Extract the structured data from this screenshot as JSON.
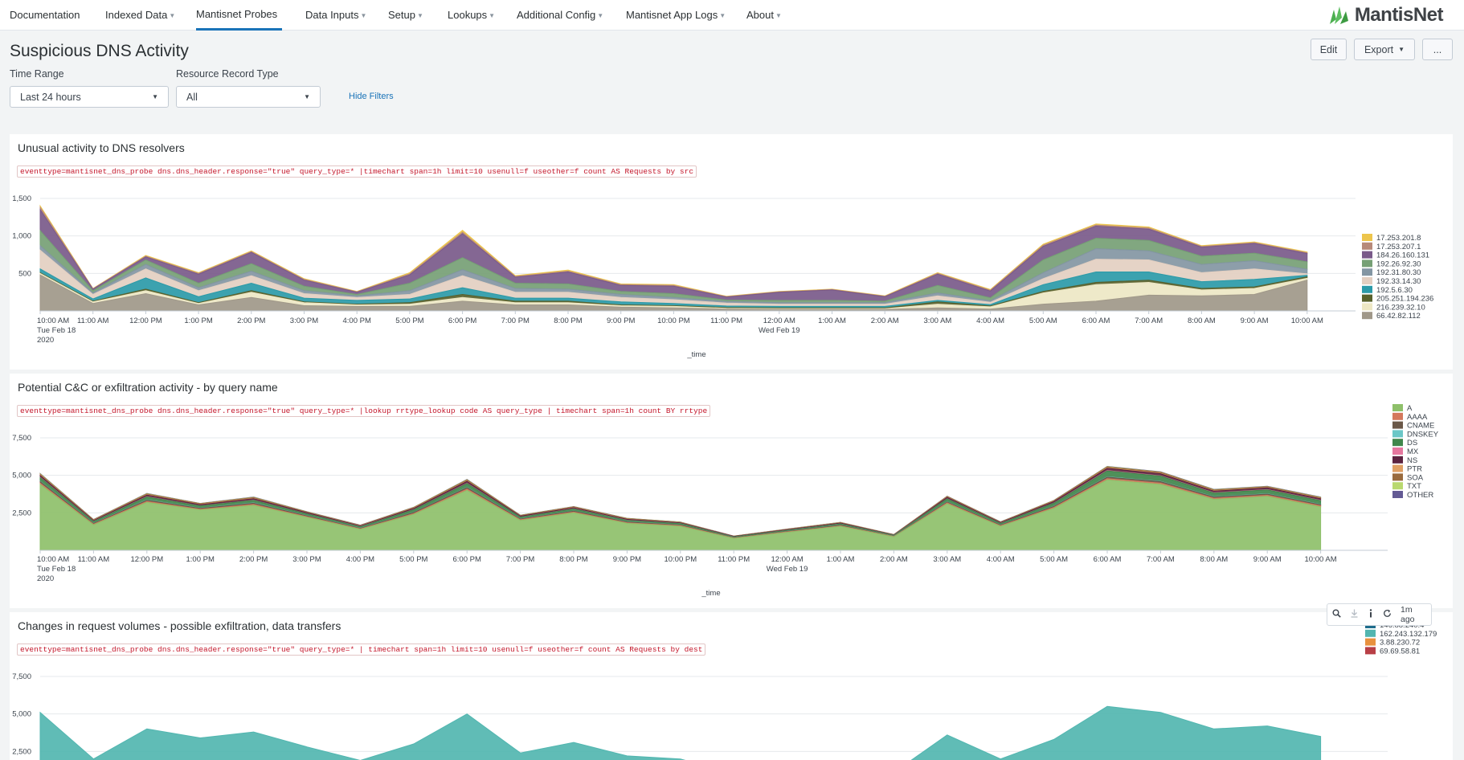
{
  "nav": {
    "items": [
      {
        "label": "Documentation"
      },
      {
        "label": "Indexed Data"
      },
      {
        "label": "Mantisnet Probes"
      },
      {
        "label": "Data Inputs"
      },
      {
        "label": "Setup"
      },
      {
        "label": "Lookups"
      },
      {
        "label": "Additional Config"
      },
      {
        "label": "Mantisnet App Logs"
      },
      {
        "label": "About"
      }
    ],
    "logo_text": "MantisNet",
    "logo_color": "#4caf50"
  },
  "page": {
    "title": "Suspicious DNS Activity",
    "edit_label": "Edit",
    "export_label": "Export",
    "more_label": "..."
  },
  "filters": {
    "time_range": {
      "label": "Time Range",
      "value": "Last 24 hours"
    },
    "record_type": {
      "label": "Resource Record Type",
      "value": "All"
    },
    "hide_label": "Hide Filters"
  },
  "panels": [
    {
      "title": "Unusual activity to DNS resolvers",
      "query": "eventtype=mantisnet_dns_probe dns.dns_header.response=\"true\" query_type=* |timechart span=1h limit=10 usenull=f useother=f count AS Requests by src"
    },
    {
      "title": "Potential C&C or exfiltration activity - by query name",
      "query": "eventtype=mantisnet_dns_probe dns.dns_header.response=\"true\" query_type=* |lookup rrtype_lookup code AS query_type | timechart span=1h count BY rrtype"
    },
    {
      "title": "Changes in request volumes - possible exfiltration, data transfers",
      "query": "eventtype=mantisnet_dns_probe dns.dns_header.response=\"true\" query_type=* | timechart span=1h limit=10 usenull=f useother=f count AS Requests by dest"
    }
  ],
  "panel_tools": {
    "icons": [
      "search-icon",
      "download-icon",
      "info-icon",
      "refresh-icon"
    ],
    "age_label": "1m ago"
  },
  "chart_data": [
    {
      "type": "area",
      "stacked": true,
      "x": [
        "10:00 AM",
        "11:00 AM",
        "12:00 PM",
        "1:00 PM",
        "2:00 PM",
        "3:00 PM",
        "4:00 PM",
        "5:00 PM",
        "6:00 PM",
        "7:00 PM",
        "8:00 PM",
        "9:00 PM",
        "10:00 PM",
        "11:00 PM",
        "12:00 AM",
        "1:00 AM",
        "2:00 AM",
        "3:00 AM",
        "4:00 AM",
        "5:00 AM",
        "6:00 AM",
        "7:00 AM",
        "8:00 AM",
        "9:00 AM",
        "10:00 AM"
      ],
      "x_date_labels": {
        "0": [
          "Tue Feb 18",
          "2020"
        ],
        "14": [
          "Wed Feb 19"
        ]
      },
      "xlabel": "_time",
      "ylim": [
        0,
        1500
      ],
      "yticks": [
        500,
        1000,
        1500
      ],
      "ytick_labels": [
        "500",
        "1,000",
        "1,500"
      ],
      "legend_position": "right",
      "series": [
        {
          "name": "66.42.82.112",
          "color": "#a09889",
          "values": [
            480,
            100,
            230,
            80,
            180,
            70,
            60,
            60,
            130,
            80,
            80,
            50,
            40,
            25,
            20,
            20,
            20,
            40,
            25,
            90,
            130,
            210,
            200,
            220,
            410
          ]
        },
        {
          "name": "216.239.32.10",
          "color": "#ede7c4",
          "values": [
            20,
            20,
            40,
            20,
            70,
            40,
            20,
            30,
            50,
            30,
            30,
            20,
            20,
            10,
            10,
            10,
            10,
            50,
            30,
            150,
            220,
            170,
            80,
            80,
            25
          ]
        },
        {
          "name": "205.251.194.236",
          "color": "#58612c",
          "values": [
            10,
            10,
            20,
            10,
            20,
            10,
            10,
            20,
            40,
            20,
            20,
            10,
            10,
            10,
            10,
            10,
            10,
            30,
            10,
            20,
            30,
            30,
            20,
            20,
            20
          ]
        },
        {
          "name": "192.5.6.30",
          "color": "#2b9aa8",
          "values": [
            50,
            30,
            150,
            80,
            100,
            50,
            50,
            50,
            90,
            40,
            40,
            40,
            30,
            20,
            20,
            20,
            20,
            20,
            20,
            90,
            140,
            110,
            90,
            100,
            20
          ]
        },
        {
          "name": "192.33.14.30",
          "color": "#e3cfc1",
          "values": [
            250,
            60,
            120,
            80,
            100,
            60,
            40,
            60,
            160,
            80,
            80,
            60,
            50,
            40,
            30,
            30,
            30,
            60,
            30,
            80,
            170,
            160,
            120,
            140,
            20
          ]
        },
        {
          "name": "192.31.80.30",
          "color": "#8396a3",
          "values": [
            60,
            20,
            60,
            40,
            60,
            40,
            20,
            50,
            80,
            50,
            40,
            40,
            30,
            20,
            20,
            20,
            20,
            40,
            20,
            80,
            140,
            120,
            110,
            110,
            60
          ]
        },
        {
          "name": "192.26.92.30",
          "color": "#76a075",
          "values": [
            200,
            30,
            60,
            60,
            100,
            60,
            20,
            100,
            160,
            70,
            70,
            40,
            50,
            20,
            30,
            30,
            20,
            100,
            40,
            170,
            140,
            140,
            110,
            100,
            100
          ]
        },
        {
          "name": "184.26.160.131",
          "color": "#7a5a8a",
          "values": [
            280,
            20,
            40,
            120,
            150,
            80,
            30,
            110,
            320,
            80,
            160,
            80,
            100,
            40,
            110,
            140,
            60,
            150,
            90,
            180,
            160,
            150,
            120,
            130,
            110
          ]
        },
        {
          "name": "17.253.207.1",
          "color": "#b78a7a",
          "values": [
            30,
            5,
            10,
            10,
            10,
            10,
            5,
            15,
            20,
            10,
            10,
            10,
            10,
            5,
            5,
            5,
            5,
            10,
            10,
            15,
            15,
            15,
            10,
            10,
            10
          ]
        },
        {
          "name": "17.253.201.8",
          "color": "#edc54c",
          "values": [
            20,
            5,
            10,
            10,
            10,
            10,
            5,
            15,
            25,
            10,
            15,
            10,
            10,
            5,
            5,
            5,
            5,
            10,
            10,
            15,
            15,
            15,
            10,
            10,
            10
          ]
        }
      ]
    },
    {
      "type": "area",
      "stacked": true,
      "x": [
        "10:00 AM",
        "11:00 AM",
        "12:00 PM",
        "1:00 PM",
        "2:00 PM",
        "3:00 PM",
        "4:00 PM",
        "5:00 PM",
        "6:00 PM",
        "7:00 PM",
        "8:00 PM",
        "9:00 PM",
        "10:00 PM",
        "11:00 PM",
        "12:00 AM",
        "1:00 AM",
        "2:00 AM",
        "3:00 AM",
        "4:00 AM",
        "5:00 AM",
        "6:00 AM",
        "7:00 AM",
        "8:00 AM",
        "9:00 AM",
        "10:00 AM"
      ],
      "x_date_labels": {
        "0": [
          "Tue Feb 18",
          "2020"
        ],
        "14": [
          "Wed Feb 19"
        ]
      },
      "xlabel": "_time",
      "ylim": [
        0,
        7500
      ],
      "yticks": [
        2500,
        5000,
        7500
      ],
      "ytick_labels": [
        "2,500",
        "5,000",
        "7,500"
      ],
      "legend_position": "right",
      "series": [
        {
          "name": "A",
          "color": "#8ec06a",
          "values": [
            4400,
            1700,
            3200,
            2700,
            3000,
            2200,
            1400,
            2400,
            4000,
            2000,
            2500,
            1800,
            1600,
            800,
            1200,
            1600,
            900,
            3100,
            1600,
            2800,
            4700,
            4400,
            3400,
            3600,
            2900
          ]
        },
        {
          "name": "AAAA",
          "color": "#d4785c",
          "values": [
            80,
            40,
            60,
            40,
            60,
            40,
            30,
            50,
            80,
            40,
            50,
            40,
            40,
            20,
            30,
            30,
            20,
            60,
            40,
            60,
            80,
            80,
            70,
            70,
            60
          ]
        },
        {
          "name": "CNAME",
          "color": "#6b5848",
          "values": [
            100,
            50,
            80,
            60,
            80,
            60,
            40,
            60,
            100,
            50,
            60,
            50,
            40,
            20,
            30,
            40,
            20,
            60,
            40,
            70,
            100,
            100,
            80,
            80,
            80
          ]
        },
        {
          "name": "DNSKEY",
          "color": "#6bc7c7",
          "values": [
            20,
            10,
            20,
            10,
            20,
            10,
            10,
            10,
            20,
            10,
            10,
            10,
            10,
            5,
            5,
            10,
            5,
            10,
            10,
            10,
            20,
            20,
            20,
            20,
            20
          ]
        },
        {
          "name": "DS",
          "color": "#40874c",
          "values": [
            250,
            120,
            200,
            150,
            170,
            120,
            90,
            180,
            250,
            110,
            140,
            100,
            90,
            50,
            70,
            80,
            50,
            200,
            100,
            200,
            400,
            350,
            250,
            260,
            250
          ]
        },
        {
          "name": "MX",
          "color": "#e5779f",
          "values": [
            20,
            10,
            20,
            10,
            20,
            10,
            10,
            10,
            20,
            10,
            10,
            10,
            10,
            5,
            5,
            10,
            5,
            10,
            10,
            10,
            20,
            20,
            20,
            20,
            20
          ]
        },
        {
          "name": "NS",
          "color": "#5c2340",
          "values": [
            120,
            60,
            100,
            80,
            90,
            70,
            50,
            80,
            130,
            60,
            70,
            60,
            50,
            30,
            40,
            50,
            30,
            90,
            50,
            100,
            150,
            140,
            110,
            110,
            110
          ]
        },
        {
          "name": "PTR",
          "color": "#e0a064",
          "values": [
            30,
            15,
            25,
            20,
            25,
            15,
            10,
            20,
            30,
            15,
            20,
            15,
            10,
            5,
            10,
            10,
            5,
            20,
            10,
            20,
            30,
            30,
            25,
            25,
            25
          ]
        },
        {
          "name": "SOA",
          "color": "#9a6b3e",
          "values": [
            60,
            30,
            50,
            40,
            50,
            30,
            20,
            40,
            60,
            30,
            40,
            30,
            20,
            10,
            20,
            20,
            10,
            40,
            20,
            40,
            60,
            60,
            50,
            50,
            50
          ]
        },
        {
          "name": "TXT",
          "color": "#b9d86f",
          "values": [
            20,
            10,
            20,
            10,
            20,
            10,
            10,
            10,
            20,
            10,
            10,
            10,
            10,
            5,
            5,
            10,
            5,
            10,
            10,
            10,
            20,
            20,
            20,
            20,
            20
          ]
        },
        {
          "name": "OTHER",
          "color": "#635a94",
          "values": [
            20,
            10,
            20,
            10,
            20,
            10,
            10,
            10,
            20,
            10,
            10,
            10,
            10,
            5,
            5,
            10,
            5,
            10,
            10,
            10,
            20,
            20,
            20,
            20,
            20
          ]
        }
      ]
    },
    {
      "type": "area",
      "stacked": true,
      "ylim": [
        0,
        7500
      ],
      "yticks": [
        2500,
        5000,
        7500
      ],
      "ytick_labels": [
        "2,500",
        "5,000",
        "7,500"
      ],
      "legend_position": "right",
      "series": [
        {
          "name": "146.88.240.4",
          "color": "#1e6c8c",
          "values": []
        },
        {
          "name": "162.243.132.179",
          "color": "#52b6b0",
          "values": [
            5100,
            2000,
            4000,
            3400,
            3800,
            2800,
            1900,
            3000,
            5000,
            2400,
            3100,
            2200,
            2000,
            1000,
            1500,
            1900,
            1100,
            3600,
            2000,
            3300,
            5500,
            5100,
            4000,
            4200,
            3500
          ]
        },
        {
          "name": "3.88.230.72",
          "color": "#e8913e",
          "values": []
        },
        {
          "name": "69.69.58.81",
          "color": "#b83f46",
          "values": []
        }
      ]
    }
  ]
}
